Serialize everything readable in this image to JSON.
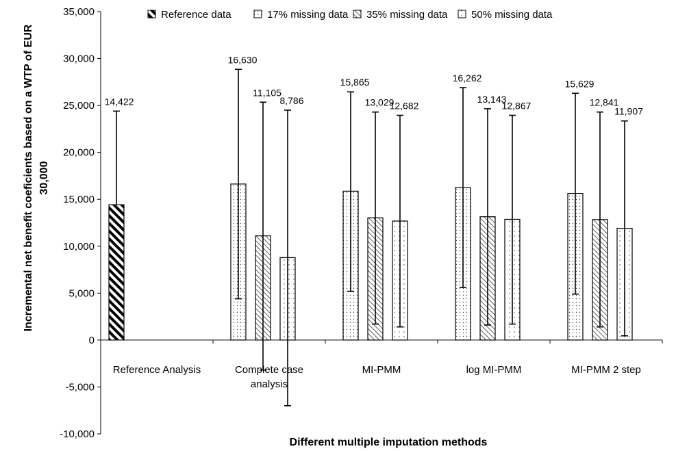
{
  "chart_data": {
    "type": "bar",
    "title": "",
    "xlabel": "Different multiple imputation methods",
    "ylabel_line1": "Incremental net benefit coeficients based on a WTP of EUR",
    "ylabel_line2": "30,000",
    "ylim": [
      -10000,
      35000
    ],
    "ytick_step": 5000,
    "ytick_labels": [
      "-10,000",
      "-5,000",
      "0",
      "5,000",
      "10,000",
      "15,000",
      "20,000",
      "25,000",
      "30,000",
      "35,000"
    ],
    "grid": false,
    "legend_position": "top",
    "categories": [
      {
        "lines": [
          "Reference Analysis"
        ]
      },
      {
        "lines": [
          "Complete case",
          "analysis"
        ]
      },
      {
        "lines": [
          "MI-PMM"
        ]
      },
      {
        "lines": [
          "log MI-PMM"
        ]
      },
      {
        "lines": [
          "MI-PMM 2 step"
        ]
      }
    ],
    "series": [
      {
        "name": "Reference data",
        "pattern": "diag-bold",
        "values": [
          14422,
          null,
          null,
          null,
          null
        ],
        "labels": [
          "14,422",
          null,
          null,
          null,
          null
        ],
        "err_low": [
          null,
          null,
          null,
          null,
          null
        ],
        "err_high": [
          24400,
          null,
          null,
          null,
          null
        ]
      },
      {
        "name": "17% missing data",
        "pattern": "dots",
        "values": [
          null,
          16630,
          15865,
          16262,
          15629
        ],
        "labels": [
          null,
          "16,630",
          "15,865",
          "16,262",
          "15,629"
        ],
        "err_low": [
          null,
          4400,
          5200,
          5600,
          4900
        ],
        "err_high": [
          null,
          28850,
          26450,
          26900,
          26300
        ]
      },
      {
        "name": "35% missing data",
        "pattern": "diag-thin",
        "values": [
          null,
          11105,
          13029,
          13143,
          12841
        ],
        "labels": [
          null,
          "11,105",
          "13,029",
          "13,143",
          "12,841"
        ],
        "err_low": [
          null,
          -3200,
          1700,
          1600,
          1400
        ],
        "err_high": [
          null,
          25350,
          24300,
          24650,
          24300
        ]
      },
      {
        "name": "50% missing data",
        "pattern": "dots-sparse",
        "values": [
          null,
          8786,
          12682,
          12867,
          11907
        ],
        "labels": [
          null,
          "8,786",
          "12,682",
          "12,867",
          "11,907"
        ],
        "err_low": [
          null,
          -7000,
          1400,
          1700,
          450
        ],
        "err_high": [
          null,
          24500,
          23950,
          23950,
          23350
        ]
      }
    ]
  }
}
